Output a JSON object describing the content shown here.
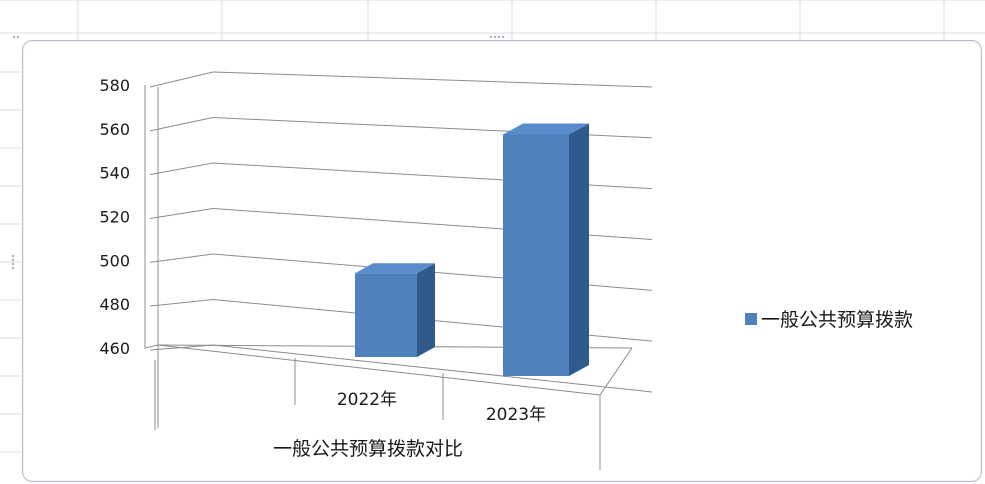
{
  "chart_data": {
    "type": "bar",
    "categories": [
      "2022年",
      "2023年"
    ],
    "series": [
      {
        "name": "一般公共预算拨款",
        "values": [
          490,
          562
        ]
      }
    ],
    "xlabel": "一般公共预算拨款对比",
    "ylabel": "",
    "ylim": [
      460,
      580
    ],
    "yticks": [
      460,
      480,
      500,
      520,
      540,
      560,
      580
    ],
    "style": "3d-column",
    "legend": "right",
    "grid": true,
    "colors": {
      "bar": "#4f81bd"
    }
  },
  "legend": {
    "label": "一般公共预算拨款"
  },
  "axis": {
    "xlabel": "一般公共预算拨款对比"
  }
}
